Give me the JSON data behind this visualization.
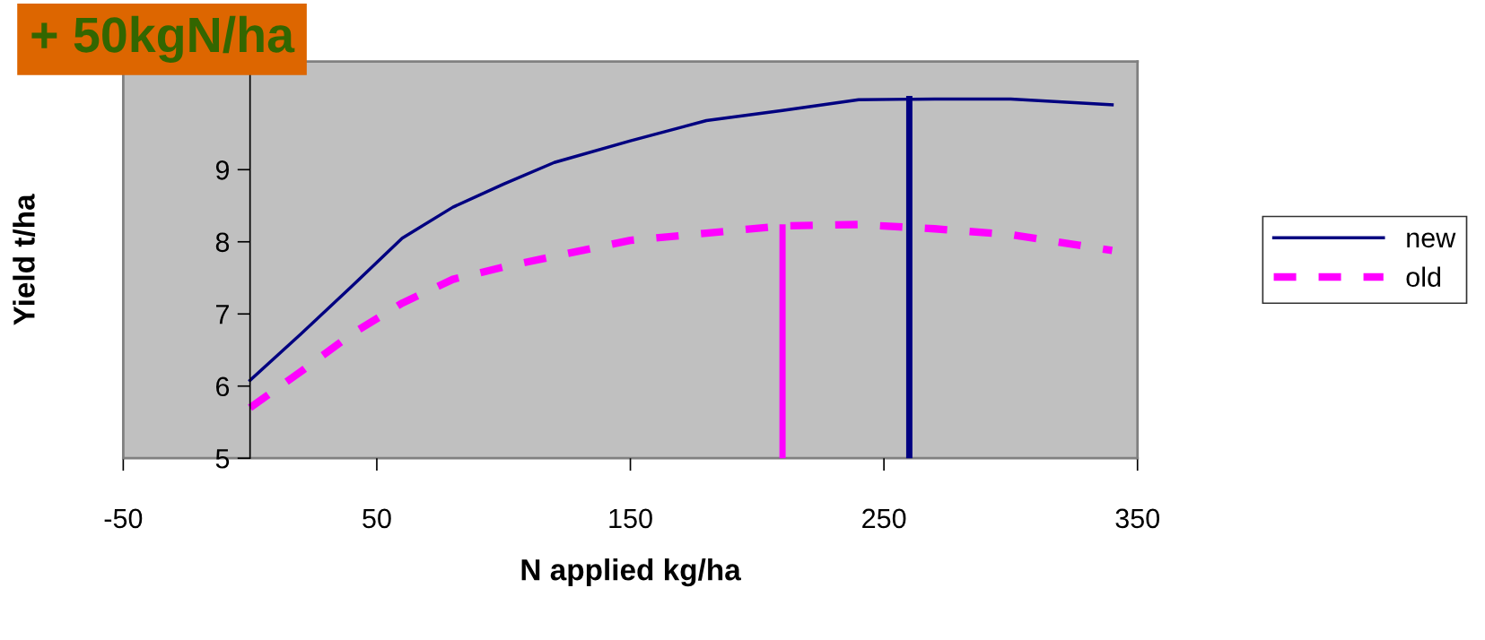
{
  "chart_data": {
    "type": "line",
    "xlabel": "N applied kg/ha",
    "ylabel": "Yield t/ha",
    "annotations": [
      "+ 50kgN/ha"
    ],
    "xlim": [
      -50,
      350
    ],
    "xticks": [
      -50,
      50,
      150,
      250,
      350
    ],
    "ylim": [
      5,
      10.5
    ],
    "yticks": [
      5,
      6,
      7,
      8,
      9
    ],
    "grid": false,
    "legend": "right",
    "marker": "none",
    "series": [
      {
        "name": "new",
        "color": "#000080",
        "line_style": "solid",
        "x": [
          0,
          20,
          40,
          60,
          80,
          100,
          120,
          150,
          180,
          210,
          240,
          270,
          300,
          340
        ],
        "values": [
          6.08,
          6.72,
          7.38,
          8.05,
          8.48,
          8.8,
          9.1,
          9.4,
          9.68,
          9.82,
          9.97,
          9.98,
          9.98,
          9.9
        ]
      },
      {
        "name": "old",
        "color": "#ff00ff",
        "line_style": "dashed",
        "x": [
          0,
          20,
          40,
          60,
          80,
          100,
          120,
          150,
          180,
          210,
          240,
          270,
          300,
          340
        ],
        "values": [
          5.7,
          6.2,
          6.72,
          7.15,
          7.48,
          7.65,
          7.8,
          8.02,
          8.12,
          8.22,
          8.24,
          8.18,
          8.1,
          7.88
        ]
      },
      {
        "color": "#ff00ff",
        "line_style": "solid",
        "x": [
          210,
          210
        ],
        "values": [
          5,
          8.2
        ]
      },
      {
        "color": "#000080",
        "line_style": "solid",
        "x": [
          260,
          260
        ],
        "values": [
          5,
          9.98
        ]
      }
    ]
  }
}
